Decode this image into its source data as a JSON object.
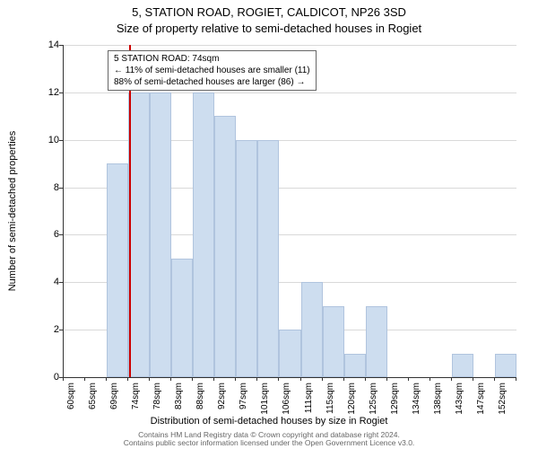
{
  "titles": {
    "line1": "5, STATION ROAD, ROGIET, CALDICOT, NP26 3SD",
    "line2": "Size of property relative to semi-detached houses in Rogiet"
  },
  "axes": {
    "ylabel": "Number of semi-detached properties",
    "xlabel": "Distribution of semi-detached houses by size in Rogiet",
    "ylim": [
      0,
      14
    ],
    "ytick_step": 2,
    "label_fontsize": 11,
    "tick_fontsize": 10
  },
  "chart": {
    "type": "histogram",
    "bar_color": "#cdddef",
    "bar_border": "#b0c4de",
    "grid_color": "#d9d9d9",
    "background": "#ffffff",
    "x_start": 60,
    "x_step": 4.6,
    "bar_count": 21,
    "values": [
      0,
      0,
      9,
      12,
      12,
      5,
      12,
      11,
      10,
      10,
      2,
      4,
      3,
      1,
      3,
      0,
      0,
      0,
      1,
      0,
      1
    ],
    "xtick_labels": [
      "60sqm",
      "65sqm",
      "69sqm",
      "74sqm",
      "78sqm",
      "83sqm",
      "88sqm",
      "92sqm",
      "97sqm",
      "101sqm",
      "106sqm",
      "111sqm",
      "115sqm",
      "120sqm",
      "125sqm",
      "129sqm",
      "134sqm",
      "138sqm",
      "143sqm",
      "147sqm",
      "152sqm"
    ]
  },
  "marker": {
    "x_value": 74,
    "color": "#cc0000"
  },
  "annotation": {
    "line1": "5 STATION ROAD: 74sqm",
    "line2": "← 11% of semi-detached houses are smaller (11)",
    "line3": "88% of semi-detached houses are larger (86) →"
  },
  "footer": {
    "line1": "Contains HM Land Registry data © Crown copyright and database right 2024.",
    "line2": "Contains public sector information licensed under the Open Government Licence v3.0."
  }
}
